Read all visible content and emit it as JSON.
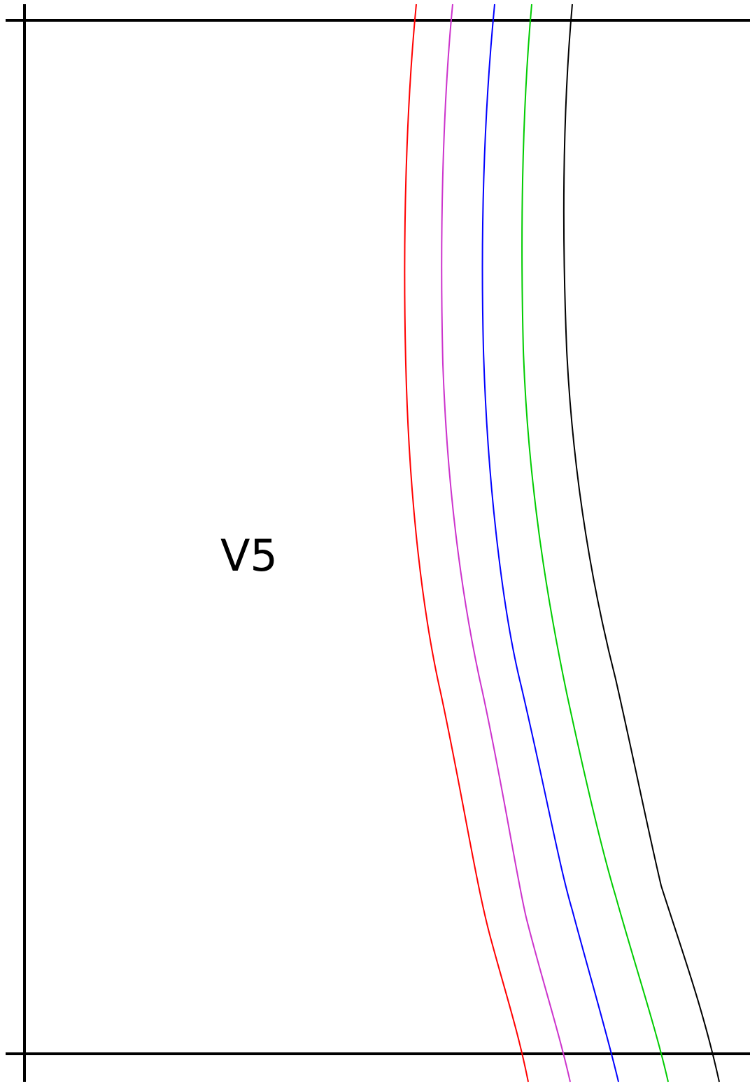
{
  "lead": {
    "label": "V5"
  },
  "colors": {
    "background": "#ffffff",
    "grid": "#000000",
    "traces": [
      "#ff0000",
      "#cc33cc",
      "#0000ff",
      "#00cc00",
      "#000000"
    ]
  },
  "traces": [
    {
      "color": "#ff0000"
    },
    {
      "color": "#cc33cc"
    },
    {
      "color": "#0000ff"
    },
    {
      "color": "#00cc00"
    },
    {
      "color": "#000000"
    }
  ]
}
